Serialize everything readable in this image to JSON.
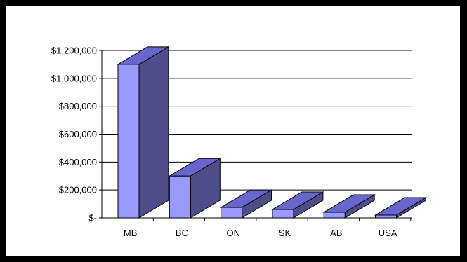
{
  "chart_data": {
    "type": "bar",
    "style": "3d",
    "categories": [
      "MB",
      "BC",
      "ON",
      "SK",
      "AB",
      "USA"
    ],
    "values": [
      1100000,
      300000,
      75000,
      60000,
      40000,
      20000
    ],
    "y_tick_labels": [
      "$-",
      "$200,000",
      "$400,000",
      "$600,000",
      "$800,000",
      "$1,000,000",
      "$1,200,000"
    ],
    "ylim": [
      0,
      1200000
    ],
    "grid": true,
    "legend": "none",
    "colors": {
      "bar_front": "#9999ff",
      "bar_top": "#6666cc",
      "bar_side": "#4d4d8a",
      "gridline": "#000000",
      "background": "#ffffff",
      "frame": "#000000"
    }
  }
}
